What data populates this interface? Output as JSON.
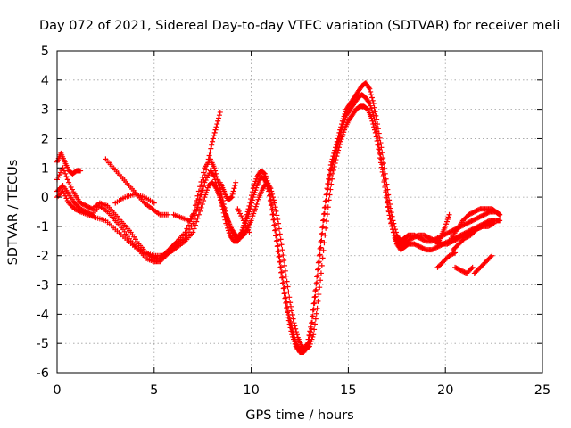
{
  "chart_data": {
    "type": "scatter",
    "title": "Day 072 of 2021, Sidereal Day-to-day VTEC variation (SDTVAR) for receiver meli",
    "xlabel": "GPS time / hours",
    "ylabel": "SDTVAR / TECUs",
    "xlim": [
      0,
      25
    ],
    "ylim": [
      -6,
      5
    ],
    "xticks": [
      "0",
      "5",
      "10",
      "15",
      "20",
      "25"
    ],
    "yticks": [
      "-6",
      "-5",
      "-4",
      "-3",
      "-2",
      "-1",
      "0",
      "1",
      "2",
      "3",
      "4",
      "5"
    ],
    "grid": true,
    "legend": "none",
    "marker": "plus",
    "color": "#ff0000",
    "series": [
      {
        "x": [
          0.0,
          0.3,
          0.6,
          0.9,
          1.2,
          1.5,
          1.8,
          2.2,
          2.6,
          3.0,
          3.4,
          3.8,
          4.2,
          4.6,
          5.0,
          5.3,
          5.6,
          5.9,
          6.2,
          6.6,
          7.0,
          7.3,
          7.6,
          7.9,
          8.1,
          8.3,
          8.5,
          8.7,
          8.9,
          9.1,
          9.3,
          9.5,
          9.7,
          9.9,
          10.1,
          10.3,
          10.5,
          10.7,
          10.9,
          11.1,
          11.3,
          11.5,
          11.7,
          11.9,
          12.1,
          12.3,
          12.5,
          12.7,
          12.9,
          13.1,
          13.3,
          13.5,
          13.7,
          13.9,
          14.1,
          14.3,
          14.5,
          14.7,
          14.9,
          15.1,
          15.3,
          15.5,
          15.7,
          15.9,
          16.1,
          16.3,
          16.5,
          16.7,
          16.9,
          17.1,
          17.3,
          17.5,
          17.7,
          17.9,
          18.1,
          18.4,
          18.7,
          19.0,
          19.3,
          19.6,
          19.9,
          20.2,
          20.5,
          20.8,
          21.1,
          21.4,
          21.7,
          22.0,
          22.3,
          22.6,
          22.8
        ],
        "y": [
          0.6,
          1.0,
          0.5,
          0.1,
          -0.2,
          -0.3,
          -0.4,
          -0.2,
          -0.3,
          -0.6,
          -0.9,
          -1.2,
          -1.6,
          -1.9,
          -2.1,
          -2.1,
          -1.9,
          -1.7,
          -1.5,
          -1.2,
          -0.6,
          0.2,
          1.0,
          1.3,
          1.0,
          0.5,
          0.0,
          -0.6,
          -1.0,
          -1.3,
          -1.4,
          -1.2,
          -0.8,
          -0.3,
          0.3,
          0.7,
          0.9,
          0.8,
          0.4,
          -0.4,
          -1.3,
          -2.2,
          -3.1,
          -3.9,
          -4.5,
          -5.0,
          -5.2,
          -5.2,
          -5.0,
          -4.3,
          -3.2,
          -2.0,
          -0.8,
          0.3,
          1.1,
          1.6,
          2.1,
          2.6,
          3.0,
          3.2,
          3.4,
          3.6,
          3.8,
          3.9,
          3.7,
          3.2,
          2.5,
          1.7,
          0.8,
          -0.1,
          -0.8,
          -1.3,
          -1.5,
          -1.4,
          -1.3,
          -1.3,
          -1.4,
          -1.5,
          -1.5,
          -1.4,
          -1.3,
          -1.2,
          -1.1,
          -1.0,
          -0.9,
          -0.8,
          -0.7,
          -0.6,
          -0.5,
          -0.5,
          -0.6
        ]
      },
      {
        "x": [
          0.0,
          0.3,
          0.6,
          0.9,
          1.2,
          1.5,
          1.8,
          2.2,
          2.6,
          3.0,
          3.4,
          3.8,
          4.2,
          4.6,
          5.0,
          5.3,
          5.6,
          5.9,
          6.2,
          6.6,
          7.0,
          7.3,
          7.6,
          7.9,
          8.1,
          8.3,
          8.5,
          8.7,
          8.9,
          9.1,
          9.3,
          9.5,
          9.7,
          9.9,
          10.1,
          10.3,
          10.5,
          10.7,
          10.9,
          11.1,
          11.3,
          11.5,
          11.7,
          11.9,
          12.1,
          12.3,
          12.5,
          12.7,
          12.9,
          13.1,
          13.3,
          13.5,
          13.7,
          13.9,
          14.1,
          14.3,
          14.5,
          14.7,
          14.9,
          15.1,
          15.3,
          15.5,
          15.7,
          15.9,
          16.1,
          16.3,
          16.5,
          16.7,
          16.9,
          17.1,
          17.3,
          17.5,
          17.7,
          17.9,
          18.1,
          18.4,
          18.7,
          19.0,
          19.3,
          19.6,
          19.9,
          20.2,
          20.5,
          20.8,
          21.1,
          21.4,
          21.7,
          22.0,
          22.3,
          22.6,
          22.8
        ],
        "y": [
          0.2,
          0.4,
          0.1,
          -0.2,
          -0.4,
          -0.5,
          -0.6,
          -0.3,
          -0.5,
          -0.8,
          -1.1,
          -1.5,
          -1.8,
          -2.1,
          -2.2,
          -2.2,
          -2.0,
          -1.8,
          -1.6,
          -1.4,
          -0.9,
          -0.2,
          0.5,
          0.9,
          0.7,
          0.2,
          -0.3,
          -0.9,
          -1.3,
          -1.5,
          -1.5,
          -1.3,
          -0.9,
          -0.5,
          0.0,
          0.4,
          0.7,
          0.6,
          0.2,
          -0.6,
          -1.5,
          -2.4,
          -3.3,
          -4.1,
          -4.7,
          -5.1,
          -5.3,
          -5.3,
          -5.1,
          -4.5,
          -3.4,
          -2.2,
          -1.0,
          0.1,
          0.9,
          1.4,
          1.9,
          2.4,
          2.8,
          3.0,
          3.2,
          3.4,
          3.5,
          3.4,
          3.2,
          2.8,
          2.1,
          1.3,
          0.4,
          -0.5,
          -1.1,
          -1.6,
          -1.8,
          -1.7,
          -1.6,
          -1.6,
          -1.7,
          -1.8,
          -1.8,
          -1.7,
          -1.6,
          -1.5,
          -1.4,
          -1.3,
          -1.2,
          -1.1,
          -1.0,
          -0.9,
          -0.8,
          -0.8,
          -0.8
        ]
      },
      {
        "x": [
          0.0,
          0.3,
          0.6,
          0.9,
          1.2,
          1.6,
          2.0,
          2.5,
          3.0,
          3.5,
          4.0,
          4.5,
          5.0,
          5.4,
          5.8,
          6.2,
          6.6,
          7.0,
          7.3,
          7.6,
          7.8,
          8.0,
          8.2,
          8.4,
          8.6,
          8.8,
          9.0,
          9.2,
          9.4,
          9.6,
          9.8,
          10.0,
          10.2,
          10.4,
          10.6,
          10.8,
          11.0,
          11.2,
          11.4,
          11.6,
          11.8,
          12.0,
          12.2,
          12.4,
          12.6,
          12.8,
          13.0,
          13.2,
          13.4,
          13.6,
          13.8,
          14.0,
          14.2,
          14.4,
          14.6,
          14.8,
          15.0,
          15.2,
          15.4,
          15.6,
          15.8,
          16.0,
          16.2,
          16.4,
          16.6,
          16.8,
          17.0,
          17.2,
          17.4,
          17.6,
          17.8,
          18.0,
          18.3,
          18.6,
          18.9,
          19.2,
          19.5,
          19.8,
          20.1,
          20.4,
          20.7,
          21.0,
          21.3,
          21.6,
          21.9,
          22.2,
          22.5
        ],
        "y": [
          0.0,
          0.2,
          -0.2,
          -0.4,
          -0.5,
          -0.6,
          -0.7,
          -0.8,
          -1.1,
          -1.4,
          -1.7,
          -1.9,
          -2.0,
          -2.0,
          -1.9,
          -1.7,
          -1.5,
          -1.2,
          -0.6,
          0.0,
          0.4,
          0.5,
          0.3,
          0.0,
          -0.4,
          -0.8,
          -1.1,
          -1.3,
          -1.4,
          -1.3,
          -1.1,
          -0.8,
          -0.4,
          0.0,
          0.3,
          0.5,
          0.3,
          -0.2,
          -0.9,
          -1.8,
          -2.7,
          -3.6,
          -4.3,
          -4.8,
          -5.1,
          -5.2,
          -5.1,
          -4.7,
          -3.8,
          -2.6,
          -1.3,
          -0.1,
          0.8,
          1.4,
          1.9,
          2.3,
          2.6,
          2.8,
          3.0,
          3.1,
          3.1,
          3.0,
          2.7,
          2.2,
          1.5,
          0.7,
          -0.2,
          -0.9,
          -1.4,
          -1.6,
          -1.6,
          -1.5,
          -1.4,
          -1.3,
          -1.3,
          -1.4,
          -1.5,
          -1.6,
          -1.6,
          -1.5,
          -1.4,
          -1.3,
          -1.2,
          -1.1,
          -1.0,
          -0.9,
          -0.8
        ]
      },
      {
        "x": [
          0.0,
          0.2,
          0.4,
          0.6,
          0.8,
          1.0,
          1.2
        ],
        "y": [
          1.2,
          1.5,
          1.2,
          0.9,
          0.8,
          0.9,
          0.9
        ]
      },
      {
        "x": [
          2.5,
          2.9,
          3.3,
          3.7,
          4.1,
          4.5,
          4.9,
          5.3,
          5.7
        ],
        "y": [
          1.3,
          1.0,
          0.7,
          0.4,
          0.1,
          -0.2,
          -0.4,
          -0.6,
          -0.6
        ]
      },
      {
        "x": [
          3.0,
          3.5,
          4.0,
          4.5,
          5.0
        ],
        "y": [
          -0.2,
          0.0,
          0.1,
          0.0,
          -0.2
        ]
      },
      {
        "x": [
          6.0,
          6.4,
          6.8,
          7.2,
          7.5,
          7.8,
          8.0,
          8.2,
          8.4
        ],
        "y": [
          -0.6,
          -0.7,
          -0.8,
          -0.4,
          0.4,
          1.3,
          1.9,
          2.4,
          2.9
        ]
      },
      {
        "x": [
          8.4,
          8.6,
          8.8,
          9.0,
          9.2
        ],
        "y": [
          0.5,
          0.2,
          -0.1,
          0.0,
          0.5
        ]
      },
      {
        "x": [
          9.3,
          9.6,
          9.9
        ],
        "y": [
          -0.4,
          -0.8,
          -1.2
        ]
      },
      {
        "x": [
          19.6,
          19.8,
          20.0,
          20.2
        ],
        "y": [
          -1.6,
          -1.3,
          -1.0,
          -0.6
        ]
      },
      {
        "x": [
          19.6,
          19.9,
          20.2,
          20.5
        ],
        "y": [
          -2.4,
          -2.2,
          -2.0,
          -1.9
        ]
      },
      {
        "x": [
          20.3,
          20.6,
          20.9,
          21.2,
          21.5,
          21.8,
          22.1,
          22.4
        ],
        "y": [
          -1.4,
          -1.1,
          -0.8,
          -0.6,
          -0.5,
          -0.4,
          -0.4,
          -0.4
        ]
      },
      {
        "x": [
          20.4,
          20.7,
          21.0,
          21.3,
          21.6,
          21.9,
          22.2,
          22.5
        ],
        "y": [
          -1.8,
          -1.6,
          -1.4,
          -1.3,
          -1.1,
          -1.0,
          -1.0,
          -0.9
        ]
      },
      {
        "x": [
          20.5,
          20.8,
          21.1,
          21.4
        ],
        "y": [
          -2.4,
          -2.5,
          -2.6,
          -2.4
        ]
      },
      {
        "x": [
          21.5,
          21.8,
          22.1,
          22.4
        ],
        "y": [
          -2.6,
          -2.4,
          -2.2,
          -2.0
        ]
      },
      {
        "x": [
          22.4,
          22.6,
          22.8
        ],
        "y": [
          -0.4,
          -0.5,
          -0.6
        ]
      }
    ]
  }
}
